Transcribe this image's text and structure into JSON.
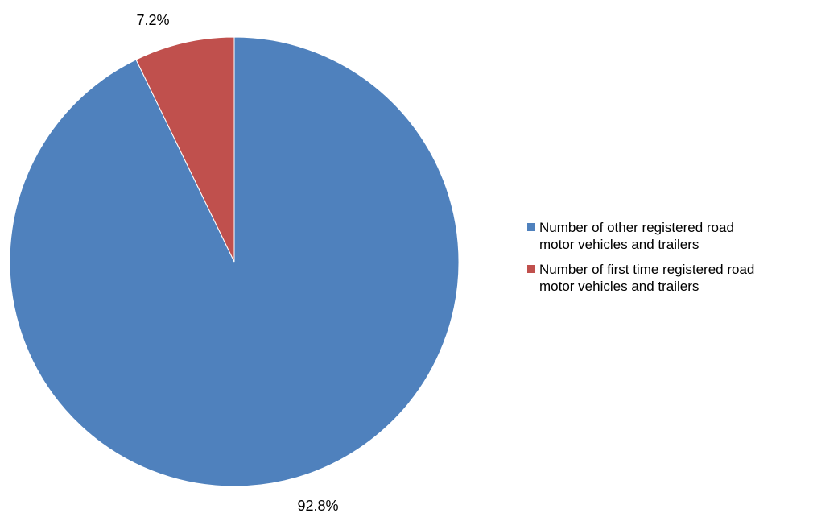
{
  "chart_data": {
    "type": "pie",
    "title": "",
    "slices": [
      {
        "label": "Number of other registered road motor vehicles and trailers",
        "label_line1": "Number of other registered road",
        "label_line2": "motor vehicles and trailers",
        "value": 92.8,
        "display": "92.8%",
        "color": "#4F81BD"
      },
      {
        "label": "Number of first time registered road motor vehicles and trailers",
        "label_line1": "Number of first time registered road",
        "label_line2": "motor vehicles and trailers",
        "value": 7.2,
        "display": "7.2%",
        "color": "#C0504D"
      }
    ],
    "start_angle": "12 o'clock",
    "direction": "clockwise",
    "legend_position": "right"
  }
}
